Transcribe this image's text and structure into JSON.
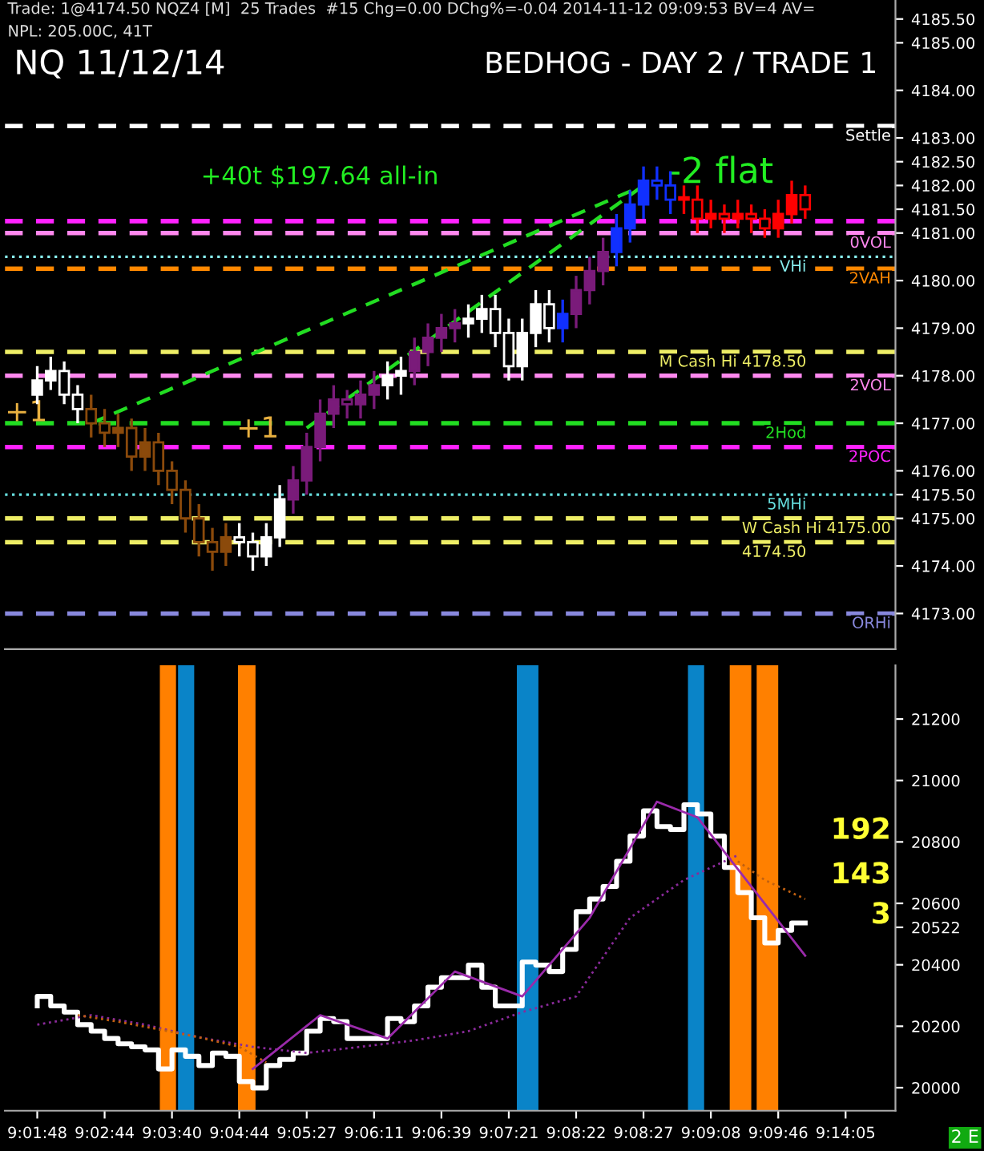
{
  "chart_data": [
    {
      "type": "candlestick",
      "title": "NQ 11/12/14",
      "subtitle": "BEDHOG - DAY 2 / TRADE 1",
      "categories": [
        null,
        null,
        null,
        null,
        null,
        null,
        null,
        null,
        null,
        null,
        null,
        null,
        null,
        null,
        null,
        null,
        null,
        null,
        null,
        null,
        null,
        null,
        null,
        null,
        null,
        null,
        null,
        null,
        null,
        null,
        null,
        null,
        null,
        null,
        null,
        null,
        null,
        null,
        null,
        null,
        null,
        null,
        null,
        null,
        null,
        null,
        null,
        null,
        null,
        null,
        null,
        null,
        null,
        null,
        null,
        null,
        null,
        null,
        null,
        null,
        null
      ],
      "ohlc": [
        [
          4177.6,
          4178.2,
          4177.4,
          4177.9
        ],
        [
          4177.9,
          4178.4,
          4177.7,
          4178.1
        ],
        [
          4178.1,
          4178.3,
          4177.4,
          4177.6
        ],
        [
          4177.6,
          4177.8,
          4177.0,
          4177.3
        ],
        [
          4177.3,
          4177.6,
          4176.7,
          4177.0
        ],
        [
          4177.0,
          4177.3,
          4176.5,
          4176.8
        ],
        [
          4176.8,
          4177.2,
          4176.5,
          4176.9
        ],
        [
          4176.9,
          4177.1,
          4176.0,
          4176.3
        ],
        [
          4176.3,
          4176.9,
          4176.0,
          4176.6
        ],
        [
          4176.6,
          4176.8,
          4175.7,
          4176.0
        ],
        [
          4176.0,
          4176.2,
          4175.3,
          4175.6
        ],
        [
          4175.6,
          4175.8,
          4174.7,
          4175.0
        ],
        [
          4175.0,
          4175.3,
          4174.2,
          4174.5
        ],
        [
          4174.5,
          4174.8,
          4173.9,
          4174.3
        ],
        [
          4174.3,
          4174.9,
          4174.0,
          4174.6
        ],
        [
          4174.6,
          4174.9,
          4174.2,
          4174.5
        ],
        [
          4174.5,
          4174.7,
          4173.9,
          4174.2
        ],
        [
          4174.2,
          4174.9,
          4174.0,
          4174.6
        ],
        [
          4174.6,
          4175.7,
          4174.4,
          4175.4
        ],
        [
          4175.4,
          4176.1,
          4175.1,
          4175.8
        ],
        [
          4175.8,
          4176.8,
          4175.5,
          4176.5
        ],
        [
          4176.5,
          4177.5,
          4176.2,
          4177.2
        ],
        [
          4177.2,
          4177.8,
          4176.9,
          4177.5
        ],
        [
          4177.5,
          4177.7,
          4177.1,
          4177.4
        ],
        [
          4177.4,
          4177.9,
          4177.1,
          4177.6
        ],
        [
          4177.6,
          4178.1,
          4177.3,
          4177.8
        ],
        [
          4177.8,
          4178.3,
          4177.5,
          4178.0
        ],
        [
          4178.0,
          4178.4,
          4177.6,
          4178.1
        ],
        [
          4178.1,
          4178.8,
          4177.8,
          4178.5
        ],
        [
          4178.5,
          4179.1,
          4178.2,
          4178.8
        ],
        [
          4178.8,
          4179.3,
          4178.5,
          4179.0
        ],
        [
          4179.0,
          4179.4,
          4178.7,
          4179.1
        ],
        [
          4179.1,
          4179.5,
          4178.8,
          4179.2
        ],
        [
          4179.2,
          4179.7,
          4178.9,
          4179.4
        ],
        [
          4179.4,
          4179.7,
          4178.6,
          4178.9
        ],
        [
          4178.9,
          4179.2,
          4177.9,
          4178.2
        ],
        [
          4178.2,
          4179.2,
          4177.9,
          4178.9
        ],
        [
          4178.9,
          4179.8,
          4178.6,
          4179.5
        ],
        [
          4179.5,
          4179.8,
          4178.7,
          4179.0
        ],
        [
          4179.0,
          4179.6,
          4178.7,
          4179.3
        ],
        [
          4179.3,
          4180.1,
          4179.0,
          4179.8
        ],
        [
          4179.8,
          4180.5,
          4179.5,
          4180.2
        ],
        [
          4180.2,
          4180.9,
          4179.9,
          4180.6
        ],
        [
          4180.6,
          4181.4,
          4180.3,
          4181.1
        ],
        [
          4181.1,
          4181.9,
          4180.8,
          4181.6
        ],
        [
          4181.6,
          4182.4,
          4181.3,
          4182.1
        ],
        [
          4182.1,
          4182.4,
          4181.7,
          4182.0
        ],
        [
          4182.0,
          4182.3,
          4181.4,
          4181.7
        ],
        [
          4181.7,
          4182.0,
          4181.4,
          4181.7
        ],
        [
          4181.7,
          4182.0,
          4181.0,
          4181.3
        ],
        [
          4181.3,
          4181.7,
          4181.1,
          4181.4
        ],
        [
          4181.4,
          4181.6,
          4181.0,
          4181.3
        ],
        [
          4181.3,
          4181.7,
          4181.1,
          4181.4
        ],
        [
          4181.4,
          4181.6,
          4181.0,
          4181.3
        ],
        [
          4181.3,
          4181.5,
          4180.9,
          4181.1
        ],
        [
          4181.1,
          4181.7,
          4180.9,
          4181.4
        ],
        [
          4181.4,
          4182.1,
          4181.2,
          4181.8
        ],
        [
          4181.8,
          4182.0,
          4181.3,
          4181.5
        ],
        null,
        null,
        null
      ],
      "colors": [
        "#ffffff",
        "#ffffff",
        "#ffffff",
        "#ffffff",
        "#8b4a0b",
        "#8b4a0b",
        "#8b4a0b",
        "#8b4a0b",
        "#8b4a0b",
        "#8b4a0b",
        "#8b4a0b",
        "#8b4a0b",
        "#8b4a0b",
        "#8b4a0b",
        "#8b4a0b",
        "#ffffff",
        "#ffffff",
        "#ffffff",
        "#ffffff",
        "#7a1b7a",
        "#7a1b7a",
        "#7a1b7a",
        "#7a1b7a",
        "#7a1b7a",
        "#7a1b7a",
        "#7a1b7a",
        "#ffffff",
        "#ffffff",
        "#7a1b7a",
        "#7a1b7a",
        "#7a1b7a",
        "#7a1b7a",
        "#ffffff",
        "#ffffff",
        "#ffffff",
        "#ffffff",
        "#ffffff",
        "#ffffff",
        "#ffffff",
        "#1030ff",
        "#7a1b7a",
        "#7a1b7a",
        "#7a1b7a",
        "#1030ff",
        "#1030ff",
        "#1030ff",
        "#1030ff",
        "#1030ff",
        "#ff0000",
        "#ff0000",
        "#ff0000",
        "#ff0000",
        "#ff0000",
        "#ff0000",
        "#ff0000",
        "#ff0000",
        "#ff0000",
        "#ff0000",
        null,
        null,
        null
      ],
      "series": [
        {
          "type": "line",
          "color": "#22dd22",
          "line_style": "dashed",
          "values": [
            null,
            null,
            null,
            null,
            4177.0,
            null,
            null,
            null,
            null,
            null,
            null,
            null,
            null,
            null,
            null,
            null,
            null,
            null,
            null,
            null,
            null,
            null,
            null,
            null,
            null,
            null,
            null,
            null,
            null,
            null,
            null,
            null,
            null,
            null,
            null,
            null,
            null,
            null,
            null,
            null,
            null,
            null,
            null,
            null,
            null,
            4182.0,
            null,
            null,
            null,
            null,
            null,
            null,
            null,
            null,
            null,
            null,
            null,
            null,
            null,
            null,
            null
          ]
        },
        {
          "type": "line",
          "color": "#22dd22",
          "line_style": "dashed",
          "values": [
            null,
            null,
            null,
            null,
            null,
            null,
            null,
            null,
            null,
            null,
            null,
            null,
            null,
            null,
            null,
            null,
            null,
            null,
            null,
            null,
            4176.9,
            null,
            null,
            null,
            null,
            null,
            null,
            null,
            null,
            null,
            null,
            null,
            null,
            null,
            null,
            null,
            null,
            null,
            null,
            null,
            null,
            null,
            null,
            null,
            null,
            4182.0,
            null,
            null,
            null,
            null,
            null,
            null,
            null,
            null,
            null,
            null,
            null,
            null,
            null,
            null,
            null
          ]
        }
      ],
      "ylim": [
        4172.25,
        4185.9
      ],
      "yticks": [
        {
          "value": 4173,
          "label": "4173.00"
        },
        {
          "value": 4174,
          "label": "4174.00"
        },
        {
          "value": 4175,
          "label": "4175.00"
        },
        {
          "value": 4176,
          "label": "4176.00"
        },
        {
          "value": 4177,
          "label": "4177.00"
        },
        {
          "value": 4178,
          "label": "4178.00"
        },
        {
          "value": 4179,
          "label": "4179.00"
        },
        {
          "value": 4180,
          "label": "4180.00"
        },
        {
          "value": 4181,
          "label": "4181.00"
        },
        {
          "value": 4182,
          "label": "4182.00"
        },
        {
          "value": 4183,
          "label": "4183.00"
        },
        {
          "value": 4184,
          "label": "4184.00"
        },
        {
          "value": 4185,
          "label": "4185.00"
        },
        {
          "value": 4175.5,
          "label": "4175.50"
        },
        {
          "value": 4181.5,
          "label": "4181.50"
        },
        {
          "value": 4182.5,
          "label": "4182.50"
        },
        {
          "value": 4185.5,
          "label": "4185.50"
        }
      ],
      "tick_labels": "y",
      "ref_lines": [
        {
          "axis": "y",
          "value": 4183.25,
          "label": "Settle",
          "color": "#ffffff",
          "line_style": "dashed"
        },
        {
          "axis": "y",
          "value": 4181.25,
          "label": null,
          "color": "#ff22ff",
          "line_style": "dashed"
        },
        {
          "axis": "y",
          "value": 4181.0,
          "label": "0VOL",
          "color": "#ff88ee",
          "line_style": "dashed"
        },
        {
          "axis": "y",
          "value": 4180.5,
          "label": "VHi",
          "color": "#88eeee",
          "line_style": "dotted"
        },
        {
          "axis": "y",
          "value": 4180.25,
          "label": "2VAH",
          "color": "#ff8800",
          "line_style": "dashed"
        },
        {
          "axis": "y",
          "value": 4178.5,
          "label": "M Cash Hi 4178.50",
          "color": "#eeee66",
          "line_style": "dashed"
        },
        {
          "axis": "y",
          "value": 4178.0,
          "label": "2VOL",
          "color": "#ff88ee",
          "line_style": "dashed"
        },
        {
          "axis": "y",
          "value": 4177.0,
          "label": "2Hod",
          "color": "#22dd22",
          "line_style": "dashed"
        },
        {
          "axis": "y",
          "value": 4176.5,
          "label": "2POC",
          "color": "#ff22ff",
          "line_style": "dashed"
        },
        {
          "axis": "y",
          "value": 4175.5,
          "label": "5MHi",
          "color": "#66dddd",
          "line_style": "dotted"
        },
        {
          "axis": "y",
          "value": 4175.0,
          "label": "W Cash Hi 4175.00",
          "color": "#eeee66",
          "line_style": "dashed"
        },
        {
          "axis": "y",
          "value": 4174.5,
          "label": "4174.50",
          "color": "#eeee66",
          "line_style": "dashed"
        },
        {
          "axis": "y",
          "value": 4173.0,
          "label": "ORHi",
          "color": "#8888dd",
          "line_style": "dashed"
        }
      ],
      "annotations": [
        "Trade: 1@4174.50 NQZ4 [M]  25 Trades  #15 Chg=0.00 DChg%=-0.04 2014-11-12 09:09:53 BV=4 AV=",
        "NPL: 205.00C, 41T",
        "+40t $197.64 all-in",
        "+1",
        "+1",
        "-2 flat"
      ]
    },
    {
      "type": "step",
      "categories": [
        "9:01:48",
        null,
        null,
        null,
        null,
        "9:02:44",
        null,
        null,
        null,
        null,
        "9:03:40",
        null,
        null,
        null,
        null,
        "9:04:44",
        null,
        null,
        null,
        null,
        "9:05:27",
        null,
        null,
        null,
        null,
        "9:06:11",
        null,
        null,
        null,
        null,
        "9:06:39",
        null,
        null,
        null,
        null,
        "9:07:21",
        null,
        null,
        null,
        null,
        "9:08:22",
        null,
        null,
        null,
        null,
        "9:08:27",
        null,
        null,
        null,
        null,
        "9:09:08",
        null,
        null,
        null,
        null,
        "9:09:46",
        null,
        null,
        null,
        null,
        "9:14:05"
      ],
      "series": [
        {
          "color": "#ffffff",
          "values": [
            20266,
            20297,
            20266,
            20246,
            20205,
            20184,
            20160,
            20143,
            20133,
            20123,
            20061,
            20123,
            20102,
            20072,
            20113,
            20102,
            20020,
            19999,
            20072,
            20092,
            20113,
            20184,
            20225,
            20215,
            20160,
            20160,
            20160,
            20225,
            20215,
            20266,
            20327,
            20358,
            20358,
            20399,
            20327,
            20266,
            20266,
            20409,
            20399,
            20378,
            20450,
            20573,
            20614,
            20655,
            20737,
            20819,
            20901,
            20850,
            20840,
            20921,
            20891,
            20819,
            20717,
            20635,
            20553,
            20471,
            20512,
            20536,
            null,
            null,
            null
          ]
        },
        {
          "type": "line",
          "color": "#8a2a9a",
          "line_style": "dotted",
          "values": [
            20205,
            null,
            null,
            null,
            20236,
            null,
            null,
            null,
            20205,
            null,
            null,
            null,
            20164,
            null,
            null,
            null,
            20133,
            null,
            null,
            null,
            20113,
            null,
            null,
            null,
            20133,
            null,
            null,
            null,
            20154,
            null,
            null,
            null,
            20184,
            null,
            null,
            null,
            20246,
            null,
            null,
            null,
            20297,
            null,
            null,
            null,
            20553,
            null,
            null,
            null,
            20676,
            null,
            null,
            null,
            20757,
            null,
            null,
            null,
            null,
            null,
            null,
            null,
            null
          ]
        },
        {
          "type": "line",
          "color": "#c06010",
          "line_style": "dotted",
          "values": [
            null,
            null,
            null,
            20236,
            null,
            null,
            20215,
            null,
            null,
            20190,
            null,
            null,
            20164,
            null,
            null,
            20133,
            null,
            20082,
            null,
            null,
            null,
            null,
            null,
            null,
            null,
            null,
            null,
            null,
            null,
            null,
            null,
            null,
            null,
            null,
            null,
            null,
            null,
            null,
            null,
            null,
            null,
            null,
            null,
            null,
            null,
            null,
            null,
            null,
            null,
            null,
            null,
            null,
            null,
            null,
            null,
            null,
            null,
            null,
            null,
            null,
            null
          ]
        },
        {
          "type": "line",
          "color": "#c06010",
          "line_style": "dotted",
          "values": [
            null,
            null,
            null,
            null,
            null,
            null,
            null,
            null,
            null,
            null,
            null,
            null,
            null,
            null,
            null,
            null,
            null,
            null,
            null,
            null,
            null,
            null,
            null,
            null,
            null,
            null,
            null,
            null,
            null,
            null,
            null,
            null,
            null,
            null,
            null,
            null,
            null,
            null,
            null,
            null,
            null,
            null,
            null,
            null,
            null,
            null,
            null,
            null,
            null,
            null,
            null,
            null,
            20737,
            null,
            20676,
            null,
            null,
            20614,
            null,
            null,
            null
          ]
        },
        {
          "type": "line",
          "color": "#9a2aaa",
          "line_style": "solid",
          "values": [
            null,
            null,
            null,
            null,
            null,
            null,
            null,
            null,
            null,
            null,
            null,
            null,
            null,
            null,
            null,
            null,
            20061,
            null,
            null,
            null,
            null,
            20236,
            null,
            null,
            null,
            null,
            20160,
            null,
            null,
            null,
            null,
            20378,
            null,
            null,
            null,
            null,
            20297,
            null,
            null,
            null,
            null,
            20553,
            null,
            null,
            null,
            null,
            20931,
            null,
            null,
            20880,
            null,
            null,
            null,
            20655,
            null,
            null,
            null,
            20430,
            null,
            null,
            null
          ]
        }
      ],
      "ylim": [
        19925,
        21375
      ],
      "yticks": [
        20000,
        20200,
        20400,
        20600,
        20800,
        21000,
        21200,
        {
          "value": 20522,
          "label": "20522"
        }
      ],
      "annotations": [
        "192",
        "143",
        "3",
        "2 E"
      ]
    }
  ]
}
